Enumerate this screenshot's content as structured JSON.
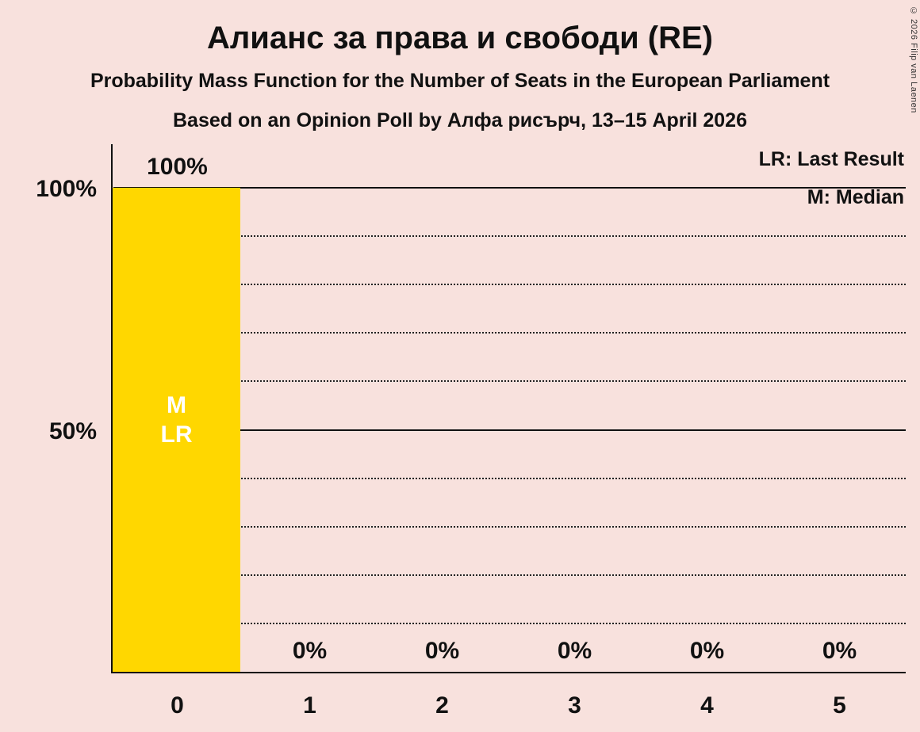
{
  "title": "Алианс за права и свободи (RE)",
  "subtitle1": "Probability Mass Function for the Number of Seats in the European Parliament",
  "subtitle2": "Based on an Opinion Poll by Алфа рисърч, 13–15 April 2026",
  "legend": {
    "lr": "LR: Last Result",
    "m": "M: Median"
  },
  "copyright": "© 2026 Filip van Laenen",
  "colors": {
    "background": "#F8E1DD",
    "bar": "#FFD700",
    "text": "#111111",
    "bar_label": "#FFFFFF"
  },
  "chart_data": {
    "type": "bar",
    "title": "Алианс за права и свободи (RE)",
    "xlabel": "",
    "ylabel": "",
    "categories": [
      "0",
      "1",
      "2",
      "3",
      "4",
      "5"
    ],
    "values": [
      100,
      0,
      0,
      0,
      0,
      0
    ],
    "value_labels": [
      "100%",
      "0%",
      "0%",
      "0%",
      "0%",
      "0%"
    ],
    "bar_annotations": [
      [
        "M",
        "LR"
      ],
      [],
      [],
      [],
      [],
      []
    ],
    "ylim": [
      0,
      100
    ],
    "ylabel_ticks": [
      "100%",
      "50%"
    ],
    "gridlines_pct": [
      10,
      20,
      30,
      40,
      50,
      60,
      70,
      80,
      90,
      100
    ],
    "solid_gridlines_pct": [
      50,
      100
    ],
    "grid": "dotted-horizontal",
    "legend_position": "top-right"
  }
}
